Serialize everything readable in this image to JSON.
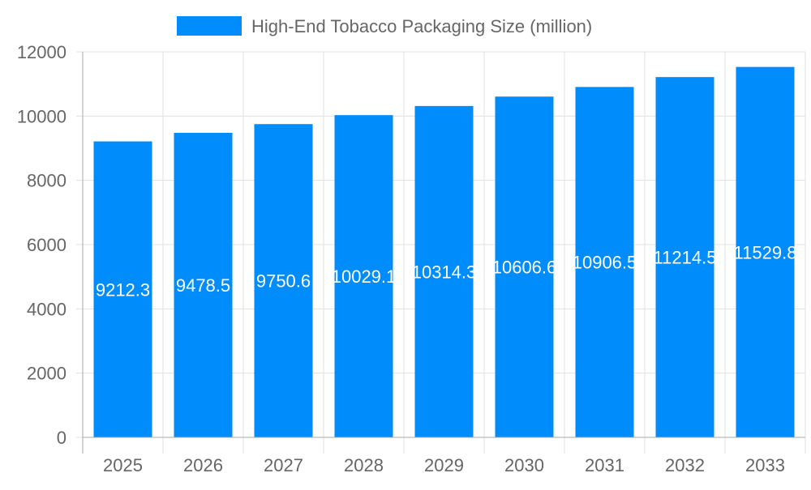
{
  "chart_data": {
    "type": "bar",
    "categories": [
      "2025",
      "2026",
      "2027",
      "2028",
      "2029",
      "2030",
      "2031",
      "2032",
      "2033"
    ],
    "series": [
      {
        "name": "High-End Tobacco Packaging Size (million)",
        "values": [
          9212.3,
          9478.5,
          9750.6,
          10029.1,
          10314.3,
          10606.6,
          10906.5,
          11214.5,
          11529.8
        ]
      }
    ],
    "ylim": [
      0,
      12000
    ],
    "yticks": [
      0,
      2000,
      4000,
      6000,
      8000,
      10000,
      12000
    ],
    "grid": true,
    "legend": "top",
    "color": "#008cfa",
    "data_labels": true
  }
}
